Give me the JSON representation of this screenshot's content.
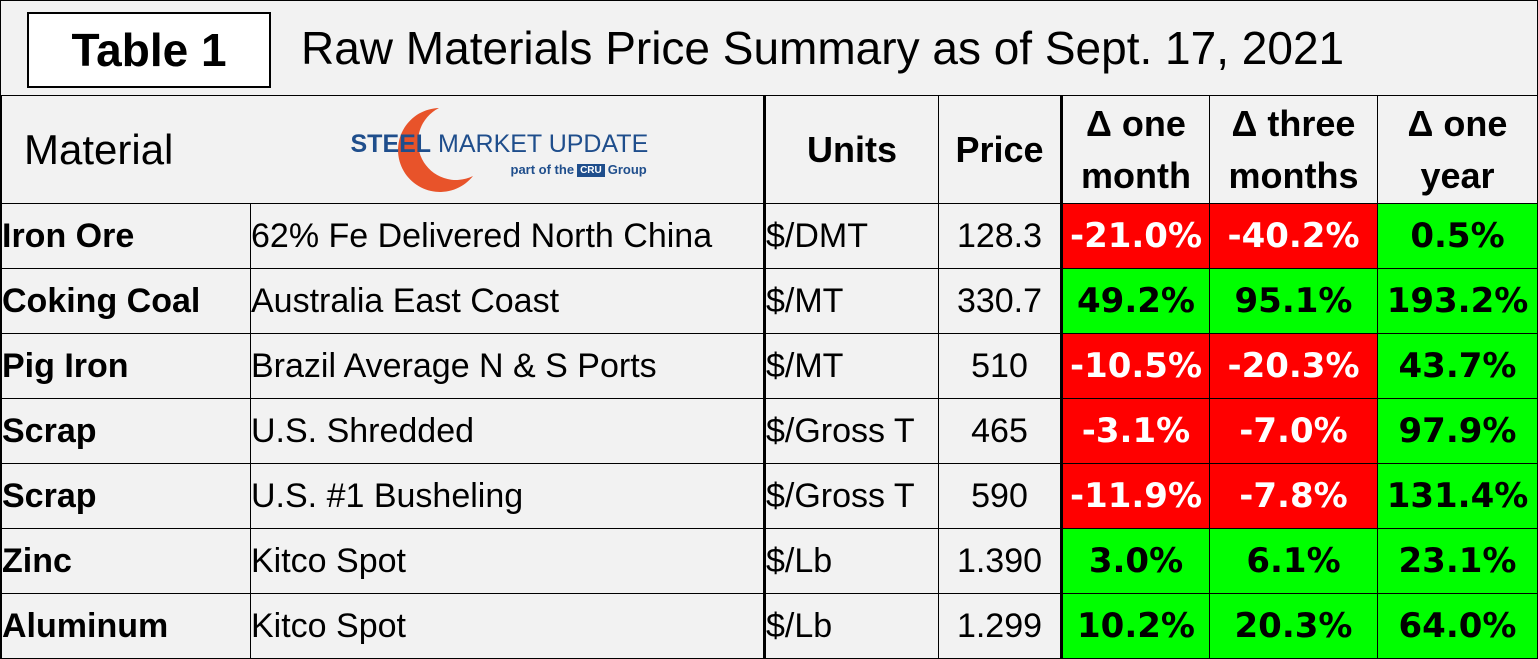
{
  "header": {
    "table_label": "Table 1",
    "title": "Raw Materials Price Summary as of Sept. 17, 2021"
  },
  "columns": {
    "material": "Material",
    "units": "Units",
    "price": "Price",
    "chg_month_l1": "Δ one",
    "chg_month_l2": "month",
    "chg_3m_l1": "Δ three",
    "chg_3m_l2": "months",
    "chg_year_l1": "Δ one",
    "chg_year_l2": "year"
  },
  "logo": {
    "word1": "STEEL",
    "word2": "MARKET UPDATE",
    "tagline_pre": "part of the",
    "tagline_mark": "CRU",
    "tagline_post": "Group",
    "accent": "#e8532a",
    "brand": "#1f4e8c"
  },
  "colors": {
    "negative": "#ff0000",
    "positive": "#00ff00"
  },
  "rows": [
    {
      "material": "Iron Ore",
      "description": "62% Fe Delivered North China",
      "units": "$/DMT",
      "price": "128.3",
      "month": "-21.0%",
      "three_months": "-40.2%",
      "year": "0.5%"
    },
    {
      "material": "Coking Coal",
      "description": "Australia East Coast",
      "units": "$/MT",
      "price": "330.7",
      "month": "49.2%",
      "three_months": "95.1%",
      "year": "193.2%"
    },
    {
      "material": "Pig Iron",
      "description": "Brazil Average N & S Ports",
      "units": "$/MT",
      "price": "510",
      "month": "-10.5%",
      "three_months": "-20.3%",
      "year": "43.7%"
    },
    {
      "material": "Scrap",
      "description": "U.S. Shredded",
      "units": "$/Gross T",
      "price": "465",
      "month": "-3.1%",
      "three_months": "-7.0%",
      "year": "97.9%"
    },
    {
      "material": "Scrap",
      "description": "U.S. #1 Busheling",
      "units": "$/Gross T",
      "price": "590",
      "month": "-11.9%",
      "three_months": "-7.8%",
      "year": "131.4%"
    },
    {
      "material": "Zinc",
      "description": "Kitco Spot",
      "units": "$/Lb",
      "price": "1.390",
      "month": "3.0%",
      "three_months": "6.1%",
      "year": "23.1%"
    },
    {
      "material": "Aluminum",
      "description": "Kitco Spot",
      "units": "$/Lb",
      "price": "1.299",
      "month": "10.2%",
      "three_months": "20.3%",
      "year": "64.0%"
    }
  ]
}
